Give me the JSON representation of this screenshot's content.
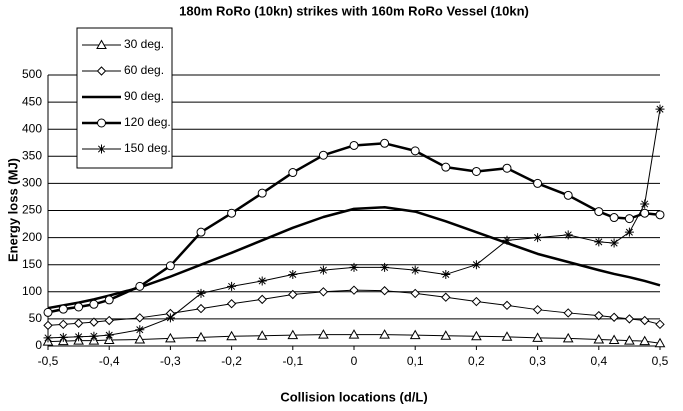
{
  "chart_data": {
    "type": "line",
    "title": "180m RoRo  (10kn) strikes with 160m RoRo Vessel (10kn)",
    "x_label": "Collision locations (d/L)",
    "y_label": "Energy loss (MJ)",
    "x": [
      -0.5,
      -0.475,
      -0.45,
      -0.425,
      -0.4,
      -0.35,
      -0.3,
      -0.25,
      -0.2,
      -0.15,
      -0.1,
      -0.05,
      0,
      0.05,
      0.1,
      0.15,
      0.2,
      0.25,
      0.3,
      0.35,
      0.4,
      0.425,
      0.45,
      0.475,
      0.5
    ],
    "series": [
      {
        "name": "30 deg.",
        "color": "#000000",
        "marker": "triangle",
        "line_width": 1,
        "values": [
          8,
          9,
          10,
          10,
          11,
          12,
          14,
          16,
          18,
          19,
          20,
          21,
          21,
          21,
          20,
          19,
          18,
          17,
          15,
          14,
          12,
          11,
          10,
          9,
          5
        ]
      },
      {
        "name": "60 deg.",
        "color": "#000000",
        "marker": "diamond",
        "line_width": 1,
        "values": [
          38,
          40,
          42,
          44,
          47,
          52,
          60,
          69,
          78,
          86,
          95,
          100,
          103,
          102,
          97,
          90,
          82,
          75,
          67,
          61,
          56,
          53,
          50,
          47,
          40
        ]
      },
      {
        "name": "90 deg.",
        "color": "#000000",
        "marker": "none",
        "line_width": 2.5,
        "values": [
          70,
          75,
          80,
          86,
          93,
          108,
          128,
          150,
          172,
          195,
          218,
          238,
          253,
          256,
          248,
          230,
          210,
          190,
          170,
          155,
          140,
          133,
          127,
          120,
          112
        ]
      },
      {
        "name": "120 deg.",
        "color": "#000000",
        "marker": "circle",
        "line_width": 2.5,
        "values": [
          62,
          68,
          72,
          77,
          85,
          110,
          148,
          210,
          245,
          282,
          320,
          352,
          370,
          374,
          360,
          330,
          322,
          328,
          300,
          278,
          248,
          237,
          235,
          245,
          242
        ]
      },
      {
        "name": "150 deg.",
        "color": "#000000",
        "marker": "star",
        "line_width": 1,
        "values": [
          15,
          16,
          17,
          18,
          20,
          30,
          52,
          97,
          110,
          120,
          132,
          140,
          145,
          145,
          140,
          132,
          150,
          195,
          200,
          205,
          192,
          190,
          210,
          262,
          437
        ]
      }
    ],
    "xlim": [
      -0.5,
      0.5
    ],
    "xticks": [
      {
        "value": -0.5,
        "label": "-0,5"
      },
      {
        "value": -0.4,
        "label": "-0,4"
      },
      {
        "value": -0.3,
        "label": "-0,3"
      },
      {
        "value": -0.2,
        "label": "-0,2"
      },
      {
        "value": -0.1,
        "label": "-0,1"
      },
      0,
      {
        "value": 0.1,
        "label": "0,1"
      },
      {
        "value": 0.2,
        "label": "0,2"
      },
      {
        "value": 0.3,
        "label": "0,3"
      },
      {
        "value": 0.4,
        "label": "0,4"
      },
      {
        "value": 0.5,
        "label": "0,5"
      }
    ],
    "ylim": [
      0,
      500
    ],
    "yticks": [
      0,
      50,
      100,
      150,
      200,
      250,
      300,
      350,
      400,
      450,
      500
    ],
    "grid": true,
    "legend": "upper left"
  }
}
